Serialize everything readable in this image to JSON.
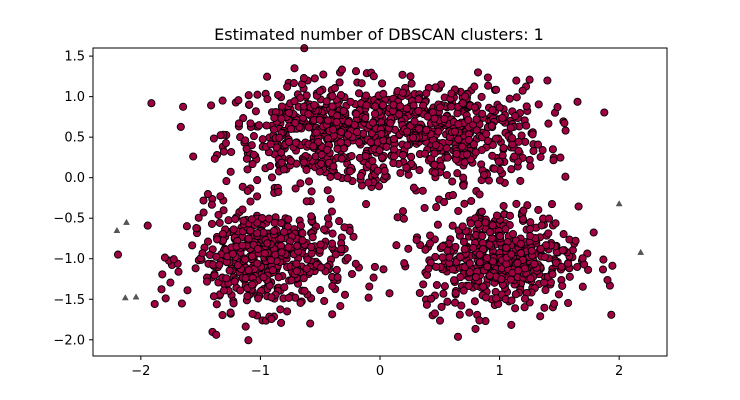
{
  "chart_data": {
    "type": "scatter",
    "title": "Estimated number of DBSCAN clusters: 1",
    "xlabel": "",
    "ylabel": "",
    "xlim": [
      -2.4,
      2.4
    ],
    "ylim": [
      -2.2,
      1.6
    ],
    "x_ticks": [
      -2,
      -1,
      0,
      1,
      2
    ],
    "x_tick_labels": [
      "−2",
      "−1",
      "0",
      "1",
      "2"
    ],
    "y_ticks": [
      1.5,
      1.0,
      0.5,
      0.0,
      -0.5,
      -1.0,
      -1.5,
      -2.0
    ],
    "y_tick_labels": [
      "1.5",
      "1.0",
      "0.5",
      "0.0",
      "−0.5",
      "−1.0",
      "−1.5",
      "−2.0"
    ],
    "grid": false,
    "legend": "none",
    "series": [
      {
        "color": "#9e0142",
        "edge_color": "#000000",
        "marker": "circle",
        "cluster_centers": [
          {
            "x": -0.45,
            "y": 0.55,
            "sx": 0.42,
            "sy": 0.32,
            "n": 500
          },
          {
            "x": 0.55,
            "y": 0.55,
            "sx": 0.42,
            "sy": 0.32,
            "n": 500
          },
          {
            "x": -0.95,
            "y": -1.0,
            "sx": 0.33,
            "sy": 0.32,
            "n": 500
          },
          {
            "x": 1.0,
            "y": -1.0,
            "sx": 0.33,
            "sy": 0.32,
            "n": 500
          }
        ]
      },
      {
        "color": "#555555",
        "edge_color": "#555555",
        "marker": "triangle",
        "points": [
          {
            "x": -2.2,
            "y": -0.65
          },
          {
            "x": -2.12,
            "y": -0.55
          },
          {
            "x": -2.13,
            "y": -1.48
          },
          {
            "x": -2.04,
            "y": -1.47
          },
          {
            "x": 2.0,
            "y": -0.32
          },
          {
            "x": 2.18,
            "y": -0.92
          }
        ]
      }
    ]
  }
}
